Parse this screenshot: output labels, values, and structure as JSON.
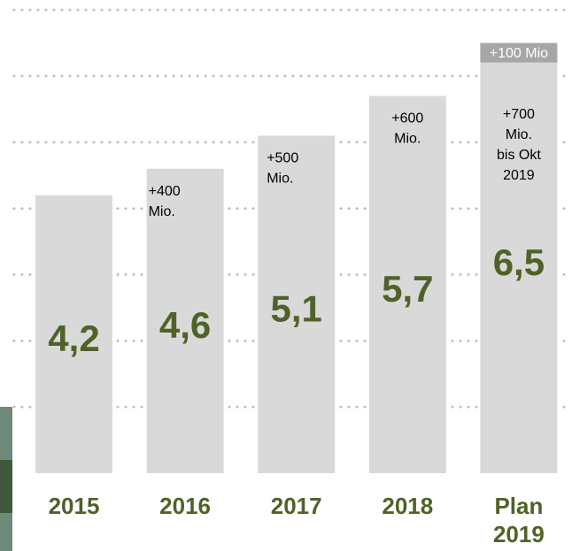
{
  "chart_data": {
    "type": "bar",
    "categories": [
      "2015",
      "2016",
      "2017",
      "2018",
      "Plan 2019"
    ],
    "values": [
      4.2,
      4.6,
      5.1,
      5.7,
      6.5
    ],
    "value_labels": [
      "4,2",
      "4,6",
      "5,1",
      "5,7",
      "6,5"
    ],
    "color": "#d9d9d9",
    "label_color": "#4f6228",
    "ylim": [
      0,
      7.15
    ],
    "yticks": [
      1,
      2,
      3,
      4,
      5,
      6,
      7
    ],
    "grid": true,
    "annotations": [
      [
        "+400",
        "Mio."
      ],
      [
        "+500",
        "Mio."
      ],
      [
        "+600",
        "Mio."
      ],
      [
        "+700",
        "Mio.",
        "bis Okt",
        "2019"
      ]
    ],
    "top_label": "+100 Mio"
  }
}
